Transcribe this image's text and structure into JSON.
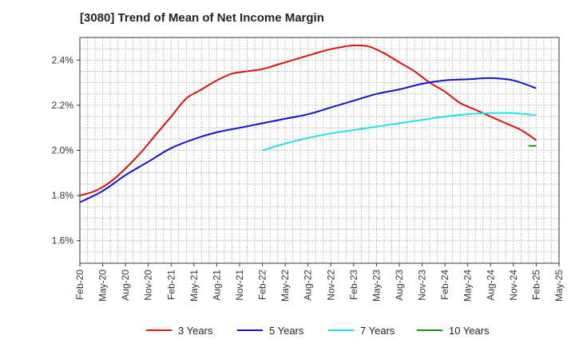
{
  "chart_data": {
    "type": "line",
    "title": "[3080]  Trend of Mean of Net Income Margin",
    "xlabel": "",
    "ylabel": "",
    "x_ticks": [
      "Feb-20",
      "May-20",
      "Aug-20",
      "Nov-20",
      "Feb-21",
      "May-21",
      "Aug-21",
      "Nov-21",
      "Feb-22",
      "May-22",
      "Aug-22",
      "Nov-22",
      "Feb-23",
      "May-23",
      "Aug-23",
      "Nov-23",
      "Feb-24",
      "May-24",
      "Aug-24",
      "Nov-24",
      "Feb-25",
      "May-25"
    ],
    "y_ticks": [
      "1.6%",
      "1.8%",
      "2.0%",
      "2.2%",
      "2.4%"
    ],
    "ylim": [
      1.5,
      2.5
    ],
    "grid": true,
    "legend_position": "bottom",
    "series": [
      {
        "name": "3 Years",
        "color": "#dd1111",
        "points": [
          [
            "Feb-20",
            1.8
          ],
          [
            "Apr-20",
            1.82
          ],
          [
            "Jun-20",
            1.86
          ],
          [
            "Aug-20",
            1.92
          ],
          [
            "Oct-20",
            1.99
          ],
          [
            "Dec-20",
            2.07
          ],
          [
            "Feb-21",
            2.15
          ],
          [
            "Apr-21",
            2.23
          ],
          [
            "Jun-21",
            2.27
          ],
          [
            "Aug-21",
            2.31
          ],
          [
            "Oct-21",
            2.34
          ],
          [
            "Dec-21",
            2.35
          ],
          [
            "Feb-22",
            2.36
          ],
          [
            "Apr-22",
            2.38
          ],
          [
            "Jun-22",
            2.4
          ],
          [
            "Aug-22",
            2.42
          ],
          [
            "Oct-22",
            2.44
          ],
          [
            "Dec-22",
            2.455
          ],
          [
            "Feb-23",
            2.465
          ],
          [
            "Apr-23",
            2.46
          ],
          [
            "Jun-23",
            2.43
          ],
          [
            "Aug-23",
            2.39
          ],
          [
            "Oct-23",
            2.35
          ],
          [
            "Dec-23",
            2.3
          ],
          [
            "Feb-24",
            2.26
          ],
          [
            "Apr-24",
            2.21
          ],
          [
            "Jun-24",
            2.18
          ],
          [
            "Aug-24",
            2.15
          ],
          [
            "Oct-24",
            2.12
          ],
          [
            "Dec-24",
            2.09
          ],
          [
            "Feb-25",
            2.045
          ]
        ]
      },
      {
        "name": "5 Years",
        "color": "#1111cc",
        "points": [
          [
            "Feb-20",
            1.77
          ],
          [
            "May-20",
            1.82
          ],
          [
            "Aug-20",
            1.89
          ],
          [
            "Nov-20",
            1.95
          ],
          [
            "Feb-21",
            2.01
          ],
          [
            "May-21",
            2.05
          ],
          [
            "Aug-21",
            2.08
          ],
          [
            "Nov-21",
            2.1
          ],
          [
            "Feb-22",
            2.12
          ],
          [
            "May-22",
            2.14
          ],
          [
            "Aug-22",
            2.16
          ],
          [
            "Nov-22",
            2.19
          ],
          [
            "Feb-23",
            2.22
          ],
          [
            "May-23",
            2.25
          ],
          [
            "Aug-23",
            2.27
          ],
          [
            "Nov-23",
            2.295
          ],
          [
            "Feb-24",
            2.31
          ],
          [
            "May-24",
            2.315
          ],
          [
            "Aug-24",
            2.32
          ],
          [
            "Nov-24",
            2.31
          ],
          [
            "Feb-25",
            2.275
          ]
        ]
      },
      {
        "name": "7 Years",
        "color": "#22e0e8",
        "points": [
          [
            "Feb-22",
            2.0
          ],
          [
            "May-22",
            2.03
          ],
          [
            "Aug-22",
            2.055
          ],
          [
            "Nov-22",
            2.075
          ],
          [
            "Feb-23",
            2.09
          ],
          [
            "May-23",
            2.105
          ],
          [
            "Aug-23",
            2.12
          ],
          [
            "Nov-23",
            2.135
          ],
          [
            "Feb-24",
            2.15
          ],
          [
            "May-24",
            2.16
          ],
          [
            "Aug-24",
            2.165
          ],
          [
            "Nov-24",
            2.165
          ],
          [
            "Feb-25",
            2.155
          ]
        ]
      },
      {
        "name": "10 Years",
        "color": "#228822",
        "points": [
          [
            "Jan-25",
            2.02
          ],
          [
            "Feb-25",
            2.02
          ]
        ]
      }
    ]
  }
}
